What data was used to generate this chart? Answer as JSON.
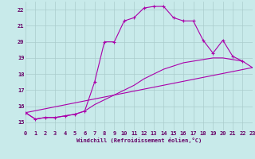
{
  "bg_color": "#c8eaea",
  "grid_color": "#aacccc",
  "line_color": "#aa00aa",
  "xlabel": "Windchill (Refroidissement éolien,°C)",
  "xlim": [
    0,
    23
  ],
  "ylim": [
    14.5,
    22.5
  ],
  "yticks": [
    15,
    16,
    17,
    18,
    19,
    20,
    21,
    22
  ],
  "xticks": [
    0,
    1,
    2,
    3,
    4,
    5,
    6,
    7,
    8,
    9,
    10,
    11,
    12,
    13,
    14,
    15,
    16,
    17,
    18,
    19,
    20,
    21,
    22,
    23
  ],
  "curve1_x": [
    0,
    1,
    2,
    3,
    4,
    5,
    6,
    7,
    8,
    9,
    10,
    11,
    12,
    13,
    14,
    15,
    16,
    17,
    18,
    19,
    20,
    21,
    22
  ],
  "curve1_y": [
    15.6,
    15.2,
    15.3,
    15.3,
    15.4,
    15.5,
    15.7,
    17.5,
    20.0,
    20.0,
    21.3,
    21.5,
    22.1,
    22.2,
    22.2,
    21.5,
    21.3,
    21.3,
    20.1,
    19.3,
    20.1,
    19.1,
    18.8
  ],
  "curve2_x": [
    0,
    1,
    2,
    3,
    4,
    5,
    6,
    7,
    8,
    9,
    10,
    11,
    12,
    13,
    14,
    15,
    16,
    17,
    18,
    19,
    20,
    21,
    22,
    23
  ],
  "curve2_y": [
    15.6,
    15.2,
    15.3,
    15.3,
    15.4,
    15.5,
    15.7,
    16.1,
    16.4,
    16.7,
    17.0,
    17.3,
    17.7,
    18.0,
    18.3,
    18.5,
    18.7,
    18.8,
    18.9,
    19.0,
    19.0,
    18.9,
    18.8,
    18.4
  ],
  "curve3_x": [
    0,
    23
  ],
  "curve3_y": [
    15.6,
    18.4
  ],
  "font_color": "#660066"
}
